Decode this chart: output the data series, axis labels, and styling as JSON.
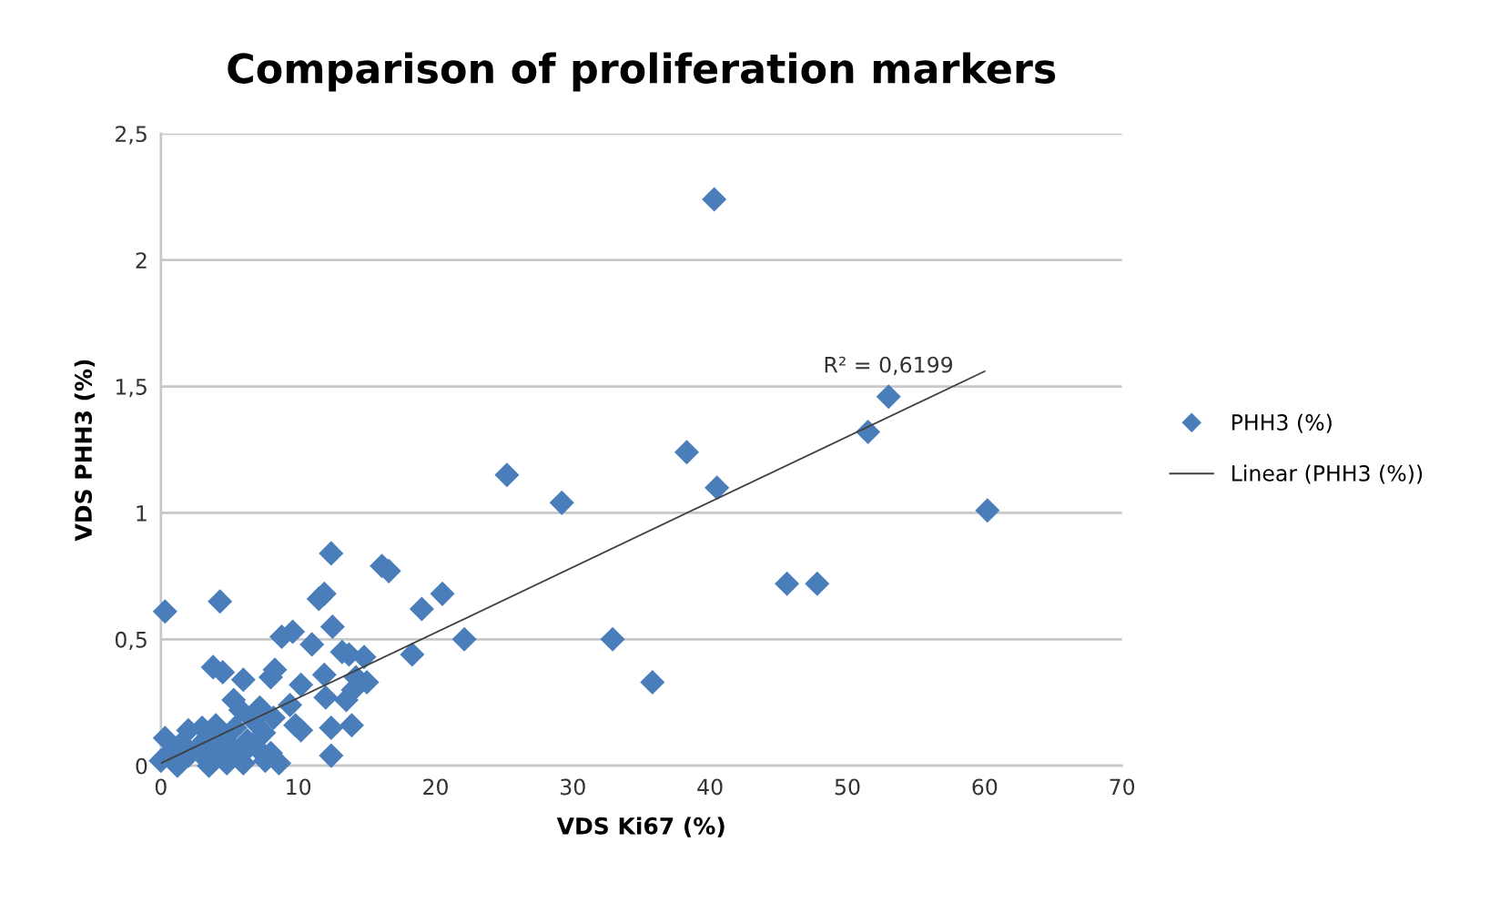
{
  "chart_data": {
    "type": "scatter",
    "title": "Comparison of proliferation markers",
    "xlabel": "VDS Ki67 (%)",
    "ylabel": "VDS PHH3 (%)",
    "xlim": [
      0,
      70
    ],
    "xticks": [
      0,
      10,
      20,
      30,
      40,
      50,
      60,
      70
    ],
    "ylim": [
      0,
      2.5
    ],
    "yticks": [
      0,
      {
        "value": 0.5,
        "label": "0,5"
      },
      1,
      {
        "value": 1.5,
        "label": "1,5"
      },
      2,
      {
        "value": 2.5,
        "label": "2,5"
      }
    ],
    "grid": "y",
    "legend": "right",
    "annotations": [
      "R² = 0,6199"
    ],
    "series": [
      {
        "name": "PHH3 (%)",
        "marker": "diamond",
        "color": "#4a7ebb",
        "x": [
          40.3,
          53,
          51.5,
          38.3,
          40.5,
          25.2,
          29.2,
          60.2,
          45.6,
          47.8,
          32.9,
          35.8,
          22.1,
          20.5,
          19.0,
          18.3,
          16.1,
          16.6,
          12.4,
          11.9,
          11.5,
          12.5,
          0.3,
          4.3,
          3.8,
          4.5,
          9.6,
          8.8,
          11.0,
          13.2,
          14.8,
          13.7,
          8.3,
          8.0,
          6.0,
          10.2,
          11.9,
          14.2,
          15.0,
          12.0,
          13.5,
          14.0,
          5.3,
          5.8,
          7.2,
          9.4,
          9.8,
          10.2,
          12.4,
          13.9,
          12.4,
          8.6,
          6.0,
          0,
          0.3,
          0.8,
          1.2,
          1.5,
          2.0,
          2.8,
          3.0,
          3.4,
          3.7,
          4.0,
          4.3,
          4.6,
          5.0,
          5.4,
          5.8,
          6.3,
          6.7,
          7.0,
          7.5,
          8.0,
          8.2,
          7.6,
          3.5,
          2.0,
          4.8
        ],
        "values": [
          2.24,
          1.46,
          1.32,
          1.24,
          1.1,
          1.15,
          1.04,
          1.01,
          0.72,
          0.72,
          0.5,
          0.33,
          0.5,
          0.68,
          0.62,
          0.44,
          0.79,
          0.77,
          0.84,
          0.68,
          0.66,
          0.55,
          0.61,
          0.65,
          0.39,
          0.37,
          0.53,
          0.51,
          0.48,
          0.45,
          0.43,
          0.44,
          0.38,
          0.35,
          0.34,
          0.32,
          0.36,
          0.35,
          0.33,
          0.27,
          0.26,
          0.3,
          0.26,
          0.22,
          0.23,
          0.24,
          0.16,
          0.14,
          0.15,
          0.16,
          0.04,
          0.01,
          0.01,
          0.02,
          0.11,
          0.06,
          0.0,
          0.09,
          0.04,
          0.08,
          0.15,
          0.02,
          0.1,
          0.16,
          0.05,
          0.12,
          0.08,
          0.15,
          0.04,
          0.1,
          0.18,
          0.07,
          0.13,
          0.05,
          0.19,
          0.02,
          0.0,
          0.14,
          0.01
        ]
      },
      {
        "name": "Linear (PHH3 (%))",
        "type": "line",
        "marker": "none",
        "color": "#404040",
        "line_style": "solid",
        "x": [
          0,
          60
        ],
        "values": [
          0.01,
          1.56
        ]
      }
    ]
  }
}
